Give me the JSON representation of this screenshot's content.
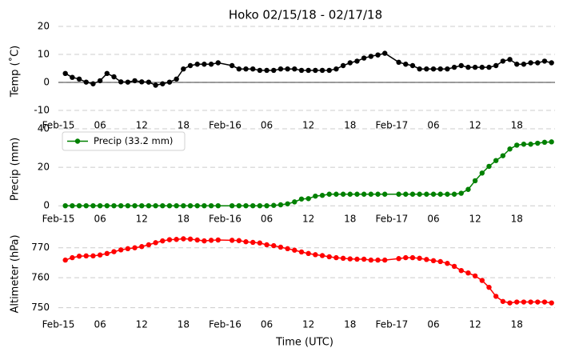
{
  "chart_data": [
    {
      "type": "line",
      "title": "Hoko 02/15/18 - 02/17/18",
      "y_label": "Temp (˚C)",
      "x": [
        1,
        2,
        3,
        4,
        5,
        6,
        7,
        8,
        9,
        10,
        11,
        12,
        13,
        14,
        15,
        16,
        17,
        18,
        19,
        20,
        21,
        22,
        23,
        25,
        26,
        27,
        28,
        29,
        30,
        31,
        32,
        33,
        34,
        35,
        36,
        37,
        38,
        39,
        40,
        41,
        42,
        43,
        44,
        45,
        46,
        47,
        49,
        50,
        51,
        52,
        53,
        54,
        55,
        56,
        57,
        58,
        59,
        60,
        61,
        62,
        63,
        64,
        65,
        66,
        67,
        68,
        69,
        70,
        71
      ],
      "series": [
        {
          "name": "Temp",
          "color": "#000000",
          "values": [
            3.2,
            1.8,
            1.2,
            0.1,
            -0.5,
            0.6,
            3.2,
            2.0,
            0.2,
            0.1,
            0.6,
            0.2,
            0.1,
            -1.0,
            -0.5,
            0.1,
            1.2,
            4.8,
            6.0,
            6.5,
            6.5,
            6.5,
            7.0,
            6.0,
            4.8,
            4.8,
            4.8,
            4.3,
            4.3,
            4.3,
            4.8,
            4.8,
            4.8,
            4.3,
            4.3,
            4.3,
            4.3,
            4.3,
            4.8,
            6.0,
            7.0,
            7.6,
            8.7,
            9.3,
            9.8,
            10.4,
            7.2,
            6.5,
            6.0,
            4.8,
            4.8,
            4.8,
            4.8,
            4.8,
            5.4,
            6.0,
            5.4,
            5.4,
            5.4,
            5.4,
            6.0,
            7.6,
            8.2,
            6.5,
            6.5,
            7.0,
            7.0,
            7.6,
            7.0
          ]
        }
      ],
      "xlim": [
        0,
        71.5
      ],
      "ylim": [
        -12,
        20
      ],
      "yticks": [
        -10,
        0,
        10,
        20
      ],
      "hline": 0,
      "grid": true,
      "xticks": [
        {
          "value": 0,
          "label": "Feb-15"
        },
        {
          "value": 6,
          "label": "06"
        },
        12,
        18,
        {
          "value": 24,
          "label": "Feb-16"
        },
        {
          "value": 30,
          "label": "06"
        },
        {
          "value": 36,
          "label": "12"
        },
        {
          "value": 42,
          "label": "18"
        },
        {
          "value": 48,
          "label": "Feb-17"
        },
        {
          "value": 54,
          "label": "06"
        },
        {
          "value": 60,
          "label": "12"
        },
        {
          "value": 66,
          "label": "18"
        }
      ]
    },
    {
      "type": "line",
      "y_label": "Precip (mm)",
      "legend": "upper left",
      "x": [
        1,
        2,
        3,
        4,
        5,
        6,
        7,
        8,
        9,
        10,
        11,
        12,
        13,
        14,
        15,
        16,
        17,
        18,
        19,
        20,
        21,
        22,
        23,
        25,
        26,
        27,
        28,
        29,
        30,
        31,
        32,
        33,
        34,
        35,
        36,
        37,
        38,
        39,
        40,
        41,
        42,
        43,
        44,
        45,
        46,
        47,
        49,
        50,
        51,
        52,
        53,
        54,
        55,
        56,
        57,
        58,
        59,
        60,
        61,
        62,
        63,
        64,
        65,
        66,
        67,
        68,
        69,
        70,
        71
      ],
      "series": [
        {
          "name": "Precip (33.2 mm)",
          "color": "#008000",
          "values": [
            0,
            0,
            0,
            0,
            0,
            0,
            0,
            0,
            0,
            0,
            0,
            0,
            0,
            0,
            0,
            0,
            0,
            0,
            0,
            0,
            0,
            0,
            0,
            0,
            0,
            0,
            0,
            0,
            0,
            0.2,
            0.5,
            1,
            2,
            3.5,
            3.7,
            5,
            5.4,
            6,
            6,
            6,
            6,
            6,
            6,
            6,
            6,
            6,
            6,
            6,
            6,
            6,
            6,
            6,
            6,
            6,
            6,
            6.5,
            8.5,
            13,
            17,
            20.5,
            23.5,
            26,
            29.5,
            31.5,
            32,
            32,
            32.5,
            33,
            33.2
          ]
        }
      ],
      "xlim": [
        0,
        71.5
      ],
      "ylim": [
        -2,
        40
      ],
      "yticks": [
        0,
        20,
        40
      ],
      "grid": true,
      "xticks": [
        {
          "value": 0,
          "label": "Feb-15"
        },
        {
          "value": 6,
          "label": "06"
        },
        12,
        18,
        {
          "value": 24,
          "label": "Feb-16"
        },
        {
          "value": 30,
          "label": "06"
        },
        {
          "value": 36,
          "label": "12"
        },
        {
          "value": 42,
          "label": "18"
        },
        {
          "value": 48,
          "label": "Feb-17"
        },
        {
          "value": 54,
          "label": "06"
        },
        {
          "value": 60,
          "label": "12"
        },
        {
          "value": 66,
          "label": "18"
        }
      ]
    },
    {
      "type": "line",
      "y_label": "Altimeter (hPa)",
      "x_label": "Time (UTC)",
      "x": [
        1,
        2,
        3,
        4,
        5,
        6,
        7,
        8,
        9,
        10,
        11,
        12,
        13,
        14,
        15,
        16,
        17,
        18,
        19,
        20,
        21,
        22,
        23,
        25,
        26,
        27,
        28,
        29,
        30,
        31,
        32,
        33,
        34,
        35,
        36,
        37,
        38,
        39,
        40,
        41,
        42,
        43,
        44,
        45,
        46,
        47,
        49,
        50,
        51,
        52,
        53,
        54,
        55,
        56,
        57,
        58,
        59,
        60,
        61,
        62,
        63,
        64,
        65,
        66,
        67,
        68,
        69,
        70,
        71
      ],
      "series": [
        {
          "name": "Altimeter",
          "color": "#ff0000",
          "values": [
            765.9,
            766.7,
            767.2,
            767.3,
            767.3,
            767.6,
            768.1,
            768.7,
            769.3,
            769.7,
            770.0,
            770.4,
            771.0,
            771.7,
            772.3,
            772.7,
            772.8,
            773.0,
            772.9,
            772.6,
            772.3,
            772.5,
            772.6,
            772.5,
            772.4,
            772.0,
            771.8,
            771.6,
            771.0,
            770.7,
            770.2,
            769.7,
            769.2,
            768.6,
            768.1,
            767.7,
            767.4,
            767.0,
            766.7,
            766.5,
            766.3,
            766.2,
            766.2,
            765.9,
            765.9,
            765.9,
            766.4,
            766.7,
            766.7,
            766.5,
            766.1,
            765.7,
            765.4,
            764.8,
            763.8,
            762.4,
            761.6,
            760.6,
            759.1,
            756.8,
            753.8,
            752.1,
            751.6,
            751.9,
            751.9,
            751.9,
            751.9,
            751.9,
            751.6
          ]
        }
      ],
      "xlim": [
        0,
        71.5
      ],
      "ylim": [
        747.5,
        775
      ],
      "yticks": [
        750,
        760,
        770
      ],
      "grid": true,
      "xticks": [
        {
          "value": 0,
          "label": "Feb-15"
        },
        {
          "value": 6,
          "label": "06"
        },
        12,
        18,
        {
          "value": 24,
          "label": "Feb-16"
        },
        {
          "value": 30,
          "label": "06"
        },
        {
          "value": 36,
          "label": "12"
        },
        {
          "value": 42,
          "label": "18"
        },
        {
          "value": 48,
          "label": "Feb-17"
        },
        {
          "value": 54,
          "label": "06"
        },
        {
          "value": 60,
          "label": "12"
        },
        {
          "value": 66,
          "label": "18"
        }
      ]
    }
  ]
}
